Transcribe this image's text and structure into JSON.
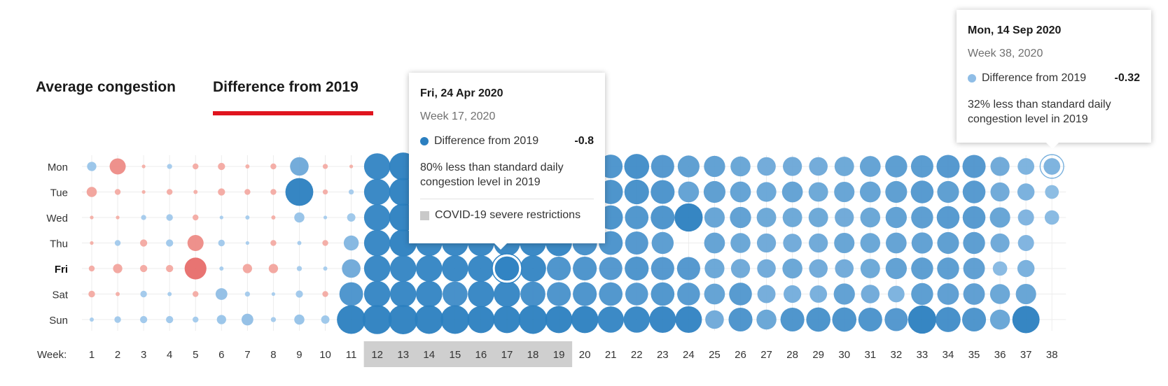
{
  "tabs": [
    {
      "label": "Average congestion",
      "active": false
    },
    {
      "label": "Difference from 2019",
      "active": true
    }
  ],
  "colors": {
    "negative_dark": "#2b7fc0",
    "negative_light": "#a7cdee",
    "positive_dark": "#e04848",
    "positive_light": "#f4b0a8",
    "accent": "#e0141e",
    "restriction_band": "#cfcfcf"
  },
  "chart_data": {
    "type": "bubble-grid",
    "metric": "Difference from 2019",
    "x_axis_label": "Week:",
    "days": [
      "Mon",
      "Tue",
      "Wed",
      "Thu",
      "Fri",
      "Sat",
      "Sun"
    ],
    "highlighted_day": "Fri",
    "weeks": [
      1,
      2,
      3,
      4,
      5,
      6,
      7,
      8,
      9,
      10,
      11,
      12,
      13,
      14,
      15,
      16,
      17,
      18,
      19,
      20,
      21,
      22,
      23,
      24,
      25,
      26,
      27,
      28,
      29,
      30,
      31,
      32,
      33,
      34,
      35,
      36,
      37,
      38
    ],
    "restriction_weeks": [
      12,
      19
    ],
    "restriction_label": "COVID-19 severe restrictions",
    "values_by_week": [
      [
        -0.1,
        0.12,
        0.01,
        0.01,
        0.04,
        0.05,
        -0.02
      ],
      [
        0.3,
        0.04,
        0.01,
        -0.04,
        0.1,
        0.02,
        -0.05
      ],
      [
        0.01,
        0.01,
        -0.03,
        0.06,
        0.06,
        -0.05,
        -0.06
      ],
      [
        -0.03,
        0.04,
        -0.05,
        -0.06,
        0.06,
        -0.02,
        -0.06
      ],
      [
        0.04,
        0.02,
        0.04,
        0.3,
        0.55,
        0.04,
        -0.04
      ],
      [
        0.06,
        0.06,
        -0.01,
        -0.05,
        -0.02,
        -0.16,
        -0.1
      ],
      [
        0.02,
        0.04,
        -0.02,
        -0.01,
        0.1,
        -0.03,
        -0.16
      ],
      [
        0.04,
        0.04,
        0.02,
        0.04,
        0.1,
        -0.01,
        -0.03
      ],
      [
        -0.4,
        -0.9,
        -0.12,
        -0.02,
        -0.03,
        -0.06,
        -0.12
      ],
      [
        0.03,
        0.03,
        -0.01,
        0.04,
        -0.02,
        0.04,
        -0.08
      ],
      [
        0.01,
        -0.03,
        -0.08,
        -0.26,
        -0.4,
        -0.65,
        -0.95
      ],
      [
        -0.8,
        -0.8,
        -0.8,
        -0.8,
        -0.8,
        -0.8,
        -0.98
      ],
      [
        -0.9,
        -0.9,
        -0.9,
        -0.85,
        -0.8,
        -0.8,
        -1.0
      ],
      [
        -0.8,
        -0.8,
        -0.8,
        -0.8,
        -0.8,
        -0.8,
        -0.95
      ],
      [
        -0.8,
        -0.8,
        -0.8,
        -0.8,
        -0.8,
        -0.72,
        -0.95
      ],
      [
        -0.8,
        -0.8,
        -0.8,
        -0.8,
        -0.8,
        -0.8,
        -0.85
      ],
      [
        -0.8,
        -0.8,
        -0.8,
        -0.8,
        -0.8,
        -0.8,
        -0.85
      ],
      [
        -0.8,
        -0.8,
        -0.8,
        -0.8,
        -0.8,
        -0.72,
        -0.95
      ],
      [
        -0.8,
        -0.8,
        -0.8,
        -0.8,
        -0.66,
        -0.66,
        -0.85
      ],
      [
        -0.7,
        -0.72,
        -0.75,
        -0.7,
        -0.66,
        -0.66,
        -0.85
      ],
      [
        -0.65,
        -0.68,
        -0.68,
        -0.66,
        -0.62,
        -0.64,
        -0.8
      ],
      [
        -0.72,
        -0.7,
        -0.64,
        -0.62,
        -0.66,
        -0.6,
        -0.8
      ],
      [
        -0.62,
        -0.66,
        -0.66,
        -0.56,
        -0.62,
        -0.64,
        -0.82
      ],
      [
        -0.55,
        -0.5,
        -0.92,
        0.0,
        -0.62,
        -0.6,
        -0.82
      ],
      [
        -0.52,
        -0.55,
        -0.48,
        -0.5,
        -0.45,
        -0.5,
        -0.4
      ],
      [
        -0.46,
        -0.5,
        -0.52,
        -0.46,
        -0.42,
        -0.6,
        -0.66
      ],
      [
        -0.4,
        -0.45,
        -0.44,
        -0.42,
        -0.4,
        -0.38,
        -0.46
      ],
      [
        -0.42,
        -0.5,
        -0.44,
        -0.4,
        -0.46,
        -0.36,
        -0.66
      ],
      [
        -0.4,
        -0.44,
        -0.44,
        -0.42,
        -0.4,
        -0.35,
        -0.68
      ],
      [
        -0.44,
        -0.48,
        -0.42,
        -0.48,
        -0.4,
        -0.52,
        -0.68
      ],
      [
        -0.5,
        -0.5,
        -0.46,
        -0.46,
        -0.44,
        -0.4,
        -0.66
      ],
      [
        -0.56,
        -0.55,
        -0.52,
        -0.5,
        -0.52,
        -0.32,
        -0.62
      ],
      [
        -0.58,
        -0.6,
        -0.56,
        -0.52,
        -0.56,
        -0.56,
        -0.92
      ],
      [
        -0.62,
        -0.55,
        -0.6,
        -0.55,
        -0.56,
        -0.54,
        -0.72
      ],
      [
        -0.62,
        -0.6,
        -0.6,
        -0.56,
        -0.54,
        -0.54,
        -0.66
      ],
      [
        -0.42,
        -0.42,
        -0.48,
        -0.42,
        -0.24,
        -0.46,
        -0.46
      ],
      [
        -0.32,
        -0.34,
        -0.3,
        -0.3,
        -0.34,
        -0.48,
        -0.86
      ],
      [
        -0.32,
        -0.22,
        -0.24,
        null,
        null,
        null,
        null
      ]
    ]
  },
  "tooltip_a": {
    "date": "Fri, 24 Apr 2020",
    "week": "Week 17, 2020",
    "metric_label": "Difference from 2019",
    "metric_value": "-0.8",
    "description": "80% less than standard daily congestion level in 2019",
    "legend_label": "COVID-19 severe restrictions",
    "dot_color": "#2b7fc0"
  },
  "tooltip_b": {
    "date": "Mon, 14 Sep 2020",
    "week": "Week 38, 2020",
    "metric_label": "Difference from 2019",
    "metric_value": "-0.32",
    "description": "32% less than standard daily congestion level in 2019",
    "dot_color": "#8fbde6"
  }
}
